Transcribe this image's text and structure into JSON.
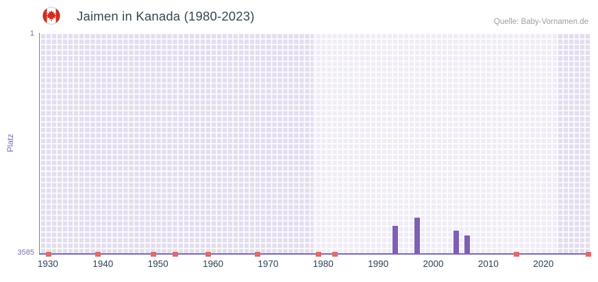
{
  "header": {
    "title": "Jaimen in Kanada (1980-2023)",
    "source": "Quelle: Baby-Vornamen.de",
    "flag_icon": "canada-flag-icon"
  },
  "colors": {
    "bar": "#7e5fb5",
    "baseline_mark": "#df6a6a",
    "axis": "#7d66b4",
    "plot_bg": "#e3ddef",
    "highlight_bg": "rgba(255,255,255,0.45)",
    "grid": "#ffffff",
    "y_label": "#7d68b6",
    "x_label": "#2f4050",
    "title": "#37474f",
    "source": "#9e9e9e",
    "flag_red": "#d52b1e"
  },
  "chart_data": {
    "type": "bar",
    "title": "Jaimen in Kanada (1980-2023)",
    "xlabel": "",
    "ylabel": "Platz",
    "legend": "none",
    "grid": true,
    "y_axis": {
      "min": 1,
      "max": 3585,
      "inverted": true,
      "top_label": "1",
      "bottom_label": "3585"
    },
    "x_axis": {
      "min": 1928.4,
      "max": 2028.3,
      "ticks": [
        1930,
        1940,
        1950,
        1960,
        1970,
        1980,
        1990,
        2000,
        2010,
        2020
      ]
    },
    "highlight_band": {
      "from": 1978,
      "to": 2022.5
    },
    "bars": [
      {
        "year": 1993,
        "rank": 3140
      },
      {
        "year": 1997,
        "rank": 3010
      },
      {
        "year": 2004,
        "rank": 3220
      },
      {
        "year": 2006,
        "rank": 3295
      }
    ],
    "baseline_marks": {
      "years": [
        1930,
        1939,
        1949,
        1953,
        1959,
        1968,
        1979,
        1982,
        2015,
        2028
      ]
    }
  }
}
